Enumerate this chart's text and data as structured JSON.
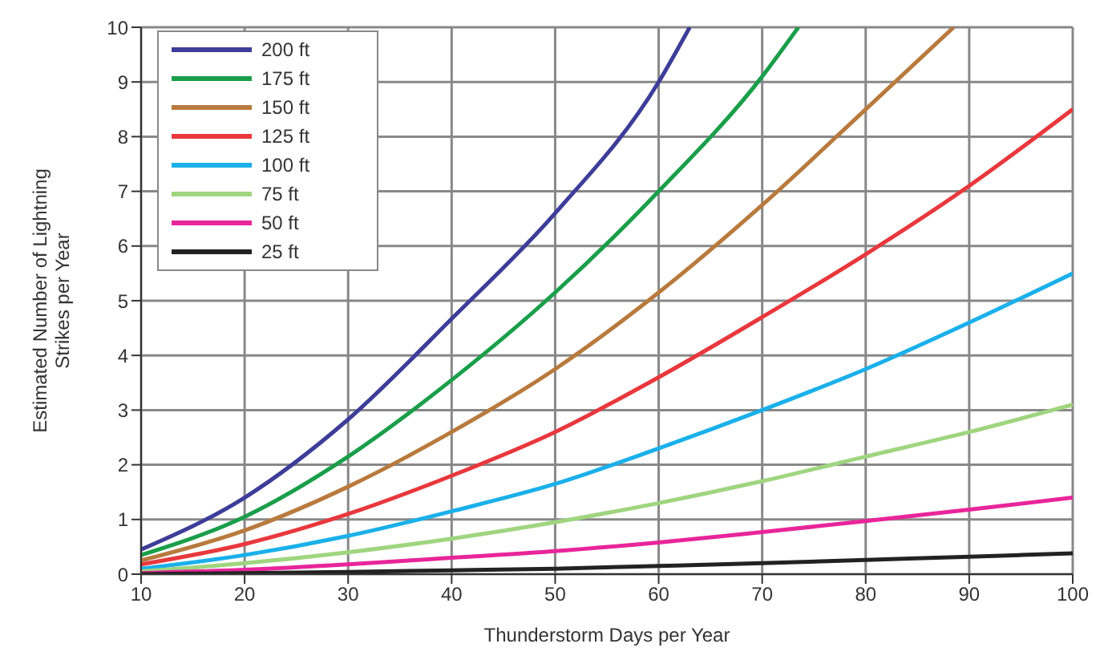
{
  "chart_data": {
    "type": "line",
    "xlabel": "Thunderstorm Days per Year",
    "ylabel": "Estimated Number of Lightning\nStrikes per Year",
    "xlim": [
      10,
      100
    ],
    "xticks": [
      10,
      20,
      30,
      40,
      50,
      60,
      70,
      80,
      90,
      100
    ],
    "ylim": [
      0,
      10
    ],
    "yticks": [
      0,
      1,
      2,
      3,
      4,
      5,
      6,
      7,
      8,
      9,
      10
    ],
    "grid": true,
    "legend": "top left",
    "marker": "none",
    "line_style": "solid",
    "series": [
      {
        "name": "200 ft",
        "color": "#3d3d99",
        "x": [
          10,
          20,
          30,
          40,
          50,
          60,
          63
        ],
        "values": [
          0.45,
          1.4,
          2.83,
          4.67,
          6.6,
          9.0,
          10
        ]
      },
      {
        "name": "175 ft",
        "color": "#1a9e4a",
        "x": [
          10,
          20,
          30,
          40,
          50,
          60,
          70,
          73.5
        ],
        "values": [
          0.35,
          1.05,
          2.15,
          3.55,
          5.15,
          7.0,
          9.1,
          10
        ]
      },
      {
        "name": "150 ft",
        "color": "#b87a3d",
        "x": [
          10,
          20,
          30,
          40,
          50,
          60,
          70,
          80,
          88.5
        ],
        "values": [
          0.25,
          0.8,
          1.6,
          2.6,
          3.75,
          5.15,
          6.75,
          8.5,
          10
        ]
      },
      {
        "name": "125 ft",
        "color": "#e8383d",
        "x": [
          10,
          20,
          30,
          40,
          50,
          60,
          70,
          80,
          90,
          100
        ],
        "values": [
          0.18,
          0.55,
          1.1,
          1.8,
          2.6,
          3.6,
          4.7,
          5.85,
          7.1,
          8.5
        ]
      },
      {
        "name": "100 ft",
        "color": "#1ab0ea",
        "x": [
          10,
          20,
          30,
          40,
          50,
          60,
          70,
          80,
          90,
          100
        ],
        "values": [
          0.1,
          0.35,
          0.7,
          1.15,
          1.65,
          2.3,
          3.0,
          3.75,
          4.6,
          5.5
        ]
      },
      {
        "name": "75 ft",
        "color": "#9fd57f",
        "x": [
          10,
          20,
          30,
          40,
          50,
          60,
          70,
          80,
          90,
          100
        ],
        "values": [
          0.05,
          0.2,
          0.4,
          0.65,
          0.95,
          1.3,
          1.7,
          2.15,
          2.6,
          3.1
        ]
      },
      {
        "name": "50 ft",
        "color": "#e8259a",
        "x": [
          10,
          20,
          30,
          40,
          50,
          60,
          70,
          80,
          90,
          100
        ],
        "values": [
          0.02,
          0.08,
          0.18,
          0.3,
          0.42,
          0.58,
          0.77,
          0.97,
          1.18,
          1.4
        ]
      },
      {
        "name": "25 ft",
        "color": "#222222",
        "x": [
          10,
          20,
          30,
          40,
          50,
          60,
          70,
          80,
          90,
          100
        ],
        "values": [
          0.0,
          0.02,
          0.04,
          0.07,
          0.1,
          0.15,
          0.2,
          0.26,
          0.32,
          0.38
        ]
      }
    ]
  }
}
